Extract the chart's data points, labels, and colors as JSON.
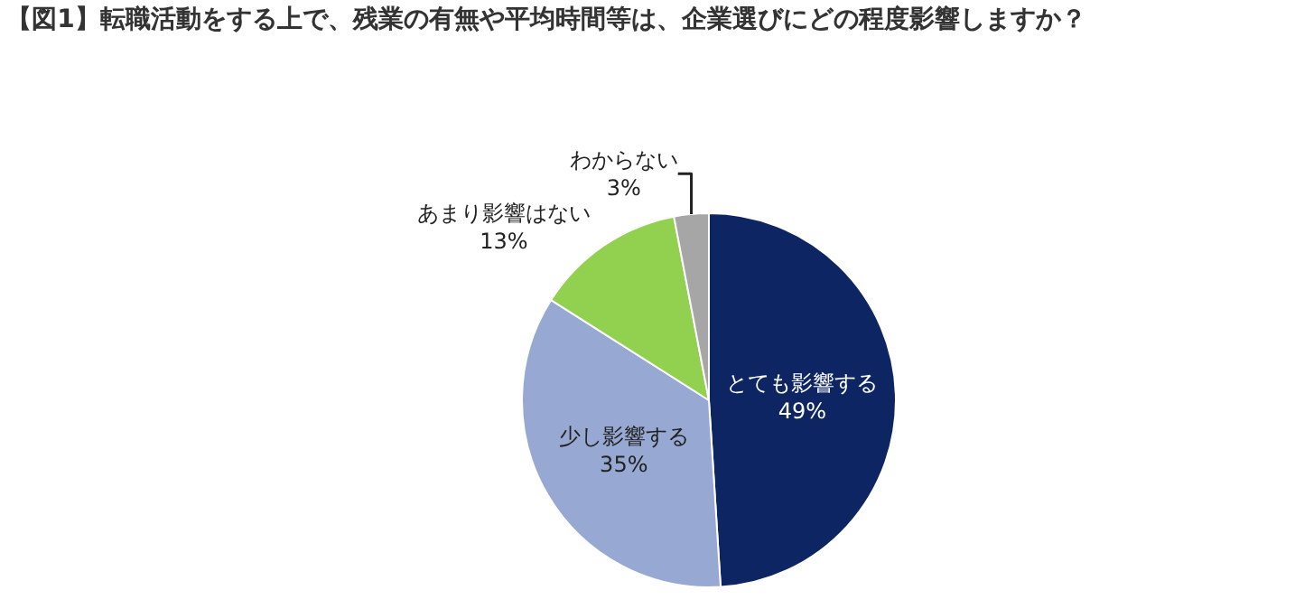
{
  "chart_data": {
    "type": "pie",
    "title": "【図1】転職活動をする上で、残業の有無や平均時間等は、企業選びにどの程度影響しますか？",
    "categories": [
      "とても影響する",
      "少し影響する",
      "あまり影響はない",
      "わからない"
    ],
    "values": [
      49,
      35,
      13,
      3
    ],
    "value_labels": [
      "49%",
      "35%",
      "13%",
      "3%"
    ],
    "colors": [
      "#0d2563",
      "#97a8d2",
      "#92d050",
      "#a6a6a6"
    ],
    "legend": false
  }
}
